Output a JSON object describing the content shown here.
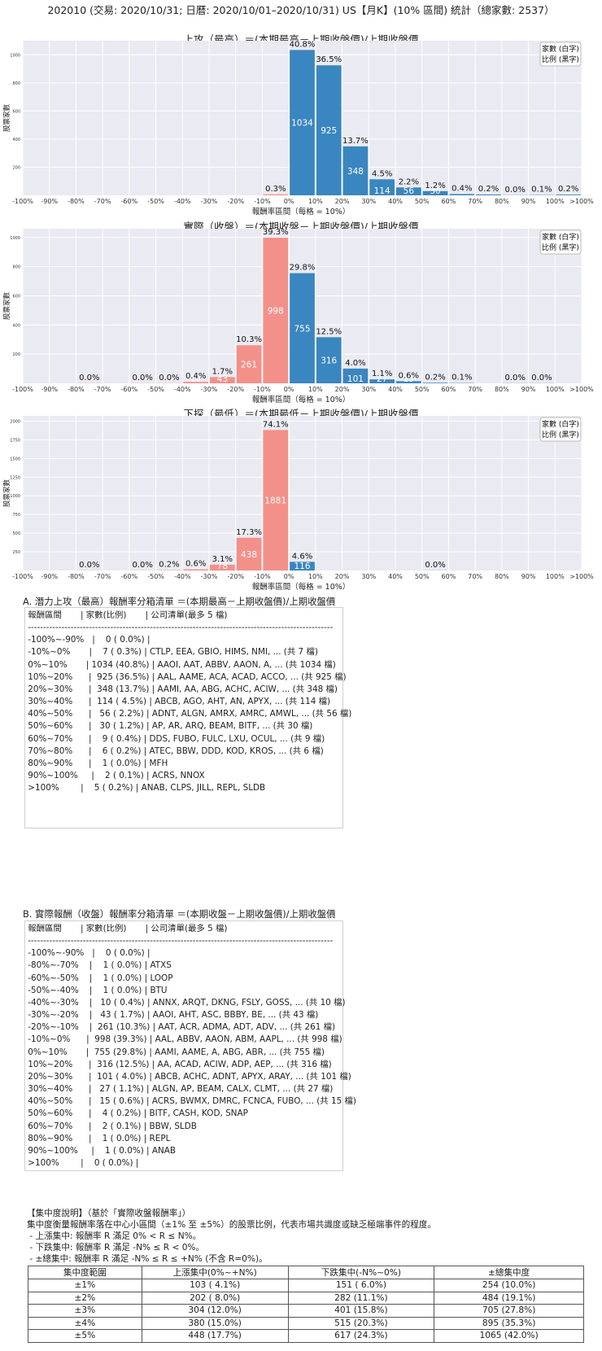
{
  "main_title": "202010 (交易: 2020/10/31; 日曆: 2020/10/01–2020/10/31) US【月K】(10% 區間) 統計（總家數: 2537）",
  "x_tick_labels": [
    "-100%",
    "-90%",
    "-80%",
    "-70%",
    "-60%",
    "-50%",
    "-40%",
    "-30%",
    "-20%",
    "-10%",
    "0%",
    "10%",
    "20%",
    "30%",
    "40%",
    "50%",
    "60%",
    "70%",
    "80%",
    "90%",
    "100%",
    ">100%"
  ],
  "legend_lines": [
    "家數 (白字)",
    "比例 (黑字)"
  ],
  "colors": {
    "up": "#3a86c0",
    "down": "#f4908a",
    "plot_bg": "#eaeaf2",
    "grid": "#ffffff"
  },
  "chart_data": [
    {
      "type": "bar",
      "title": "上攻（最高）＝(本期最高－上期收盤價)/上期收盤價",
      "xlabel": "報酬率區間（每格 = 10%）",
      "ylabel": "股票家數",
      "ylim": [
        0,
        1100
      ],
      "yticks": [
        200,
        400,
        600,
        800,
        1000
      ],
      "categories": [
        "-100%~-90%",
        "-90%~-80%",
        "-80%~-70%",
        "-70%~-60%",
        "-60%~-50%",
        "-50%~-40%",
        "-40%~-30%",
        "-30%~-20%",
        "-20%~-10%",
        "-10%~0%",
        "0%~10%",
        "10%~20%",
        "20%~30%",
        "30%~40%",
        "40%~50%",
        "50%~60%",
        "60%~70%",
        "70%~80%",
        "80%~90%",
        "90%~100%",
        ">100%"
      ],
      "values": [
        0,
        null,
        null,
        null,
        null,
        null,
        null,
        null,
        null,
        7,
        1034,
        925,
        348,
        114,
        56,
        30,
        9,
        6,
        1,
        2,
        5
      ],
      "labels": [
        "",
        null,
        null,
        null,
        null,
        null,
        null,
        null,
        null,
        "0.3%",
        "40.8%",
        "36.5%",
        "13.7%",
        "4.5%",
        "2.2%",
        "1.2%",
        "0.4%",
        "0.2%",
        "0.0%",
        "0.1%",
        "0.2%"
      ]
    },
    {
      "type": "bar",
      "title": "實際（收盤）＝(本期收盤－上期收盤價)/上期收盤價",
      "xlabel": "報酬率區間（每格 = 10%）",
      "ylabel": "股票家數",
      "ylim": [
        0,
        1060
      ],
      "yticks": [
        200,
        400,
        600,
        800,
        1000
      ],
      "categories": [
        "-100%~-90%",
        "-90%~-80%",
        "-80%~-70%",
        "-70%~-60%",
        "-60%~-50%",
        "-50%~-40%",
        "-40%~-30%",
        "-30%~-20%",
        "-20%~-10%",
        "-10%~0%",
        "0%~10%",
        "10%~20%",
        "20%~30%",
        "30%~40%",
        "40%~50%",
        "50%~60%",
        "60%~70%",
        "70%~80%",
        "80%~90%",
        "90%~100%",
        ">100%"
      ],
      "values": [
        0,
        null,
        1,
        null,
        1,
        1,
        10,
        43,
        261,
        998,
        755,
        316,
        101,
        27,
        15,
        4,
        2,
        null,
        1,
        1,
        0
      ],
      "labels": [
        "",
        null,
        "0.0%",
        null,
        "0.0%",
        "0.0%",
        "0.4%",
        "1.7%",
        "10.3%",
        "39.3%",
        "29.8%",
        "12.5%",
        "4.0%",
        "1.1%",
        "0.6%",
        "0.2%",
        "0.1%",
        null,
        "0.0%",
        "0.0%",
        ""
      ]
    },
    {
      "type": "bar",
      "title": "下探（最低）＝(本期最低－上期收盤價)/上期收盤價",
      "xlabel": "報酬率區間（每格 = 10%）",
      "ylabel": "股票家數",
      "ylim": [
        0,
        2070
      ],
      "yticks": [
        250,
        500,
        750,
        1000,
        1250,
        1500,
        1750,
        2000
      ],
      "categories": [
        "-100%~-90%",
        "-90%~-80%",
        "-80%~-70%",
        "-70%~-60%",
        "-60%~-50%",
        "-50%~-40%",
        "-40%~-30%",
        "-30%~-20%",
        "-20%~-10%",
        "-10%~0%",
        "0%~10%",
        "10%~20%",
        "20%~30%",
        "30%~40%",
        "40%~50%",
        "50%~60%",
        "60%~70%",
        "70%~80%",
        "80%~90%",
        "90%~100%",
        ">100%"
      ],
      "values": [
        null,
        null,
        1,
        null,
        1,
        4,
        16,
        78,
        438,
        1881,
        116,
        null,
        null,
        null,
        null,
        1,
        null,
        null,
        null,
        null,
        null
      ],
      "labels": [
        null,
        null,
        "0.0%",
        null,
        "0.0%",
        "0.2%",
        "0.6%",
        "3.1%",
        "17.3%",
        "74.1%",
        "4.6%",
        null,
        null,
        null,
        null,
        "0.0%",
        null,
        null,
        null,
        null,
        null
      ]
    }
  ],
  "list_a": {
    "title": "A. 潛力上攻（最高）報酬率分箱清單 ＝(本期最高－上期收盤價)/上期收盤價",
    "text": " 報酬區間       | 家數(比例)       | 公司清單(最多 5 檔)\n ----------------------------------------------------------------------------------------------------\n -100%~-90%   |    0 ( 0.0%) |\n -10%~0%       |    7 ( 0.3%) | CTLP, EEA, GBIO, HIMS, NMI, ... (共 7 檔)\n 0%~10%       | 1034 (40.8%) | AAOI, AAT, ABBV, AAON, A, ... (共 1034 檔)\n 10%~20%      |  925 (36.5%) | AAL, AAME, ACA, ACAD, ACCO, ... (共 925 檔)\n 20%~30%      |  348 (13.7%) | AAMI, AA, ABG, ACHC, ACIW, ... (共 348 檔)\n 30%~40%      |  114 ( 4.5%) | ABCB, AGO, AHT, AN, APYX, ... (共 114 檔)\n 40%~50%      |   56 ( 2.2%) | ADNT, ALGN, AMRX, AMRC, AMWL, ... (共 56 檔)\n 50%~60%      |   30 ( 1.2%) | AP, AR, ARQ, BEAM, BITF, ... (共 30 檔)\n 60%~70%      |    9 ( 0.4%) | DDS, FUBO, FULC, LXU, OCUL, ... (共 9 檔)\n 70%~80%      |    6 ( 0.2%) | ATEC, BBW, DDD, KOD, KROS, ... (共 6 檔)\n 80%~90%      |    1 ( 0.0%) | MFH\n 90%~100%     |    2 ( 0.1%) | ACRS, NNOX\n >100%        |    5 ( 0.2%) | ANAB, CLPS, JILL, REPL, SLDB"
  },
  "list_b": {
    "title": "B. 實際報酬（收盤）報酬率分箱清單 ＝(本期收盤－上期收盤價)/上期收盤價",
    "text": " 報酬區間       | 家數(比例)       | 公司清單(最多 5 檔)\n ----------------------------------------------------------------------------------------------------\n -100%~-90%   |    0 ( 0.0%) |\n -80%~-70%    |    1 ( 0.0%) | ATXS\n -60%~-50%    |    1 ( 0.0%) | LOOP\n -50%~-40%    |    1 ( 0.0%) | BTU\n -40%~-30%    |   10 ( 0.4%) | ANNX, ARQT, DKNG, FSLY, GOSS, ... (共 10 檔)\n -30%~-20%    |   43 ( 1.7%) | AAOI, AHT, ASC, BBBY, BE, ... (共 43 檔)\n -20%~-10%    |  261 (10.3%) | AAT, ACR, ADMA, ADT, ADV, ... (共 261 檔)\n -10%~0%      |  998 (39.3%) | AAL, ABBV, AAON, ABM, AAPL, ... (共 998 檔)\n 0%~10%       |  755 (29.8%) | AAMI, AAME, A, ABG, ABR, ... (共 755 檔)\n 10%~20%      |  316 (12.5%) | AA, ACAD, ACIW, ADP, AEP, ... (共 316 檔)\n 20%~30%      |  101 ( 4.0%) | ABCB, ACHC, ADNT, APYX, ARAY, ... (共 101 檔)\n 30%~40%      |   27 ( 1.1%) | ALGN, AP, BEAM, CALX, CLMT, ... (共 27 檔)\n 40%~50%      |   15 ( 0.6%) | ACRS, BWMX, DMRC, FCNCA, FUBO, ... (共 15 檔)\n 50%~60%      |    4 ( 0.2%) | BITF, CASH, KOD, SNAP\n 60%~70%      |    2 ( 0.1%) | BBW, SLDB\n 80%~90%      |    1 ( 0.0%) | REPL\n 90%~100%     |    1 ( 0.0%) | ANAB\n >100%        |    0 ( 0.0%) |"
  },
  "concentration": {
    "heading": "【集中度說明】（基於「實際收盤報酬率」）",
    "lines": [
      "集中度衡量報酬率落在中心小區間（±1% 至 ±5%）的股票比例，代表市場共識度或缺乏極端事件的程度。",
      " - 上漲集中: 報酬率 R 滿足 0% < R ≤ N%。",
      " - 下跌集中: 報酬率 R 滿足 -N% ≤ R < 0%。",
      " - ±總集中: 報酬率 R 滿足 -N% ≤ R ≤ +N% (不含 R=0%)。"
    ],
    "columns": [
      "集中度範圍",
      "上漲集中(0%~+N%)",
      "下跌集中(-N%~0%)",
      "±總集中度"
    ],
    "rows": [
      [
        "±1%",
        "103 ( 4.1%)",
        "151 ( 6.0%)",
        "254 (10.0%)"
      ],
      [
        "±2%",
        "202 ( 8.0%)",
        "282 (11.1%)",
        "484 (19.1%)"
      ],
      [
        "±3%",
        "304 (12.0%)",
        "401 (15.8%)",
        "705 (27.8%)"
      ],
      [
        "±4%",
        "380 (15.0%)",
        "515 (20.3%)",
        "895 (35.3%)"
      ],
      [
        "±5%",
        "448 (17.7%)",
        "617 (24.3%)",
        "1065 (42.0%)"
      ]
    ]
  }
}
